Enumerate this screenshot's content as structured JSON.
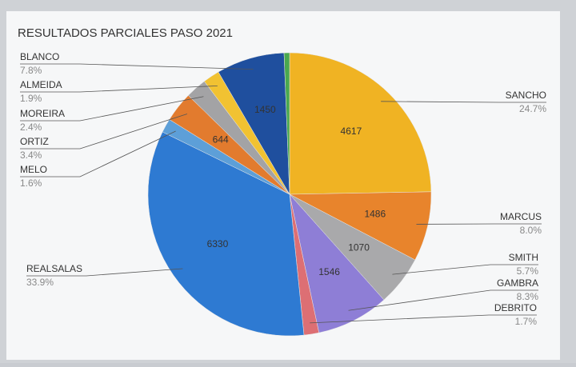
{
  "chart_data": {
    "type": "pie",
    "title": "RESULTADOS PARCIALES PASO 2021",
    "categories": [
      "SANCHO",
      "MARCUS",
      "SMITH",
      "GAMBRA",
      "DEBRITO",
      "REALSALAS",
      "MELO",
      "ORTIZ",
      "MOREIRA",
      "ALMEIDA",
      "BLANCO",
      null
    ],
    "values": [
      4617,
      1486,
      1070,
      1546,
      318,
      6330,
      299,
      644,
      448,
      355,
      1450,
      117
    ],
    "value_labels": [
      "4617",
      "1486",
      "1070",
      "1546",
      null,
      "6330",
      null,
      "644",
      null,
      null,
      "1450",
      null
    ],
    "percent_labels": [
      "24.7%",
      "8.0%",
      "5.7%",
      "8.3%",
      "1.7%",
      "33.9%",
      "1.6%",
      "3.4%",
      "2.4%",
      "1.9%",
      "7.8%",
      null
    ],
    "colors": [
      "#f0b323",
      "#e8842c",
      "#a9a9ab",
      "#8e7ed6",
      "#dd6f74",
      "#2e7ad2",
      "#5d9fd8",
      "#e27b2e",
      "#a3a3a5",
      "#f1c232",
      "#1f4f9e",
      "#4aa84f"
    ]
  }
}
